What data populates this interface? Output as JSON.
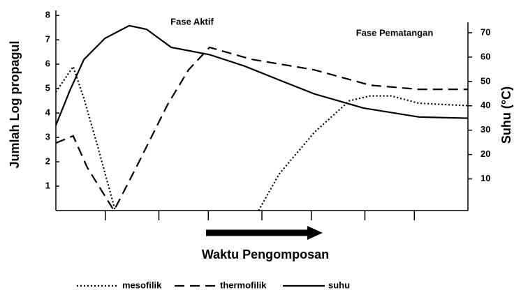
{
  "chart_data": {
    "type": "line",
    "xlabel": "Waktu Pengomposan",
    "ylabel": "Jumlah Log propagul",
    "y2label": "Suhu (°C)",
    "annotations": [
      "Fase Aktif",
      "Fase Pematangan"
    ],
    "xlim": [
      0,
      100
    ],
    "xticks": [
      12,
      25,
      37,
      50,
      62,
      75,
      87
    ],
    "ylim": [
      0,
      8.29
    ],
    "yticks": [
      1,
      2,
      3,
      4,
      5,
      6,
      7,
      8
    ],
    "y2lim": [
      -3,
      80
    ],
    "y2ticks": [
      10,
      20,
      30,
      40,
      50,
      60,
      70
    ],
    "series": [
      {
        "name": "mesofilik",
        "color": "#000000",
        "dash": "2 3",
        "x": [
          0,
          4.2,
          6.8,
          10.2,
          14.4,
          null,
          49.2,
          54.2,
          62.7,
          71.2,
          76.3,
          81.4,
          88.1,
          100
        ],
        "values": [
          4.86,
          5.9,
          4.6,
          2.6,
          0,
          null,
          0,
          1.5,
          3.2,
          4.5,
          4.7,
          4.7,
          4.4,
          4.3
        ]
      },
      {
        "name": "thermofilik",
        "color": "#000000",
        "dash": "14 8",
        "x": [
          0,
          4.2,
          7.6,
          14.1,
          19.5,
          27.1,
          32.2,
          37.3,
          47.5,
          62.7,
          76.3,
          88.1,
          100
        ],
        "values": [
          2.77,
          3.06,
          1.77,
          0,
          1.77,
          4.34,
          5.77,
          6.69,
          6.2,
          5.77,
          5.14,
          4.97,
          4.97
        ]
      },
      {
        "name": "suhu",
        "color": "#000000",
        "dash": "none",
        "axis": "y2",
        "x": [
          0,
          3.4,
          6.8,
          11.9,
          17.8,
          22,
          28,
          37.3,
          45.8,
          54.2,
          62.7,
          74.6,
          88.1,
          100
        ],
        "values": [
          32,
          46.3,
          59,
          67.7,
          72.9,
          71.4,
          64,
          61,
          56.3,
          50.6,
          44.9,
          39.1,
          35.4,
          34.9
        ]
      }
    ]
  }
}
